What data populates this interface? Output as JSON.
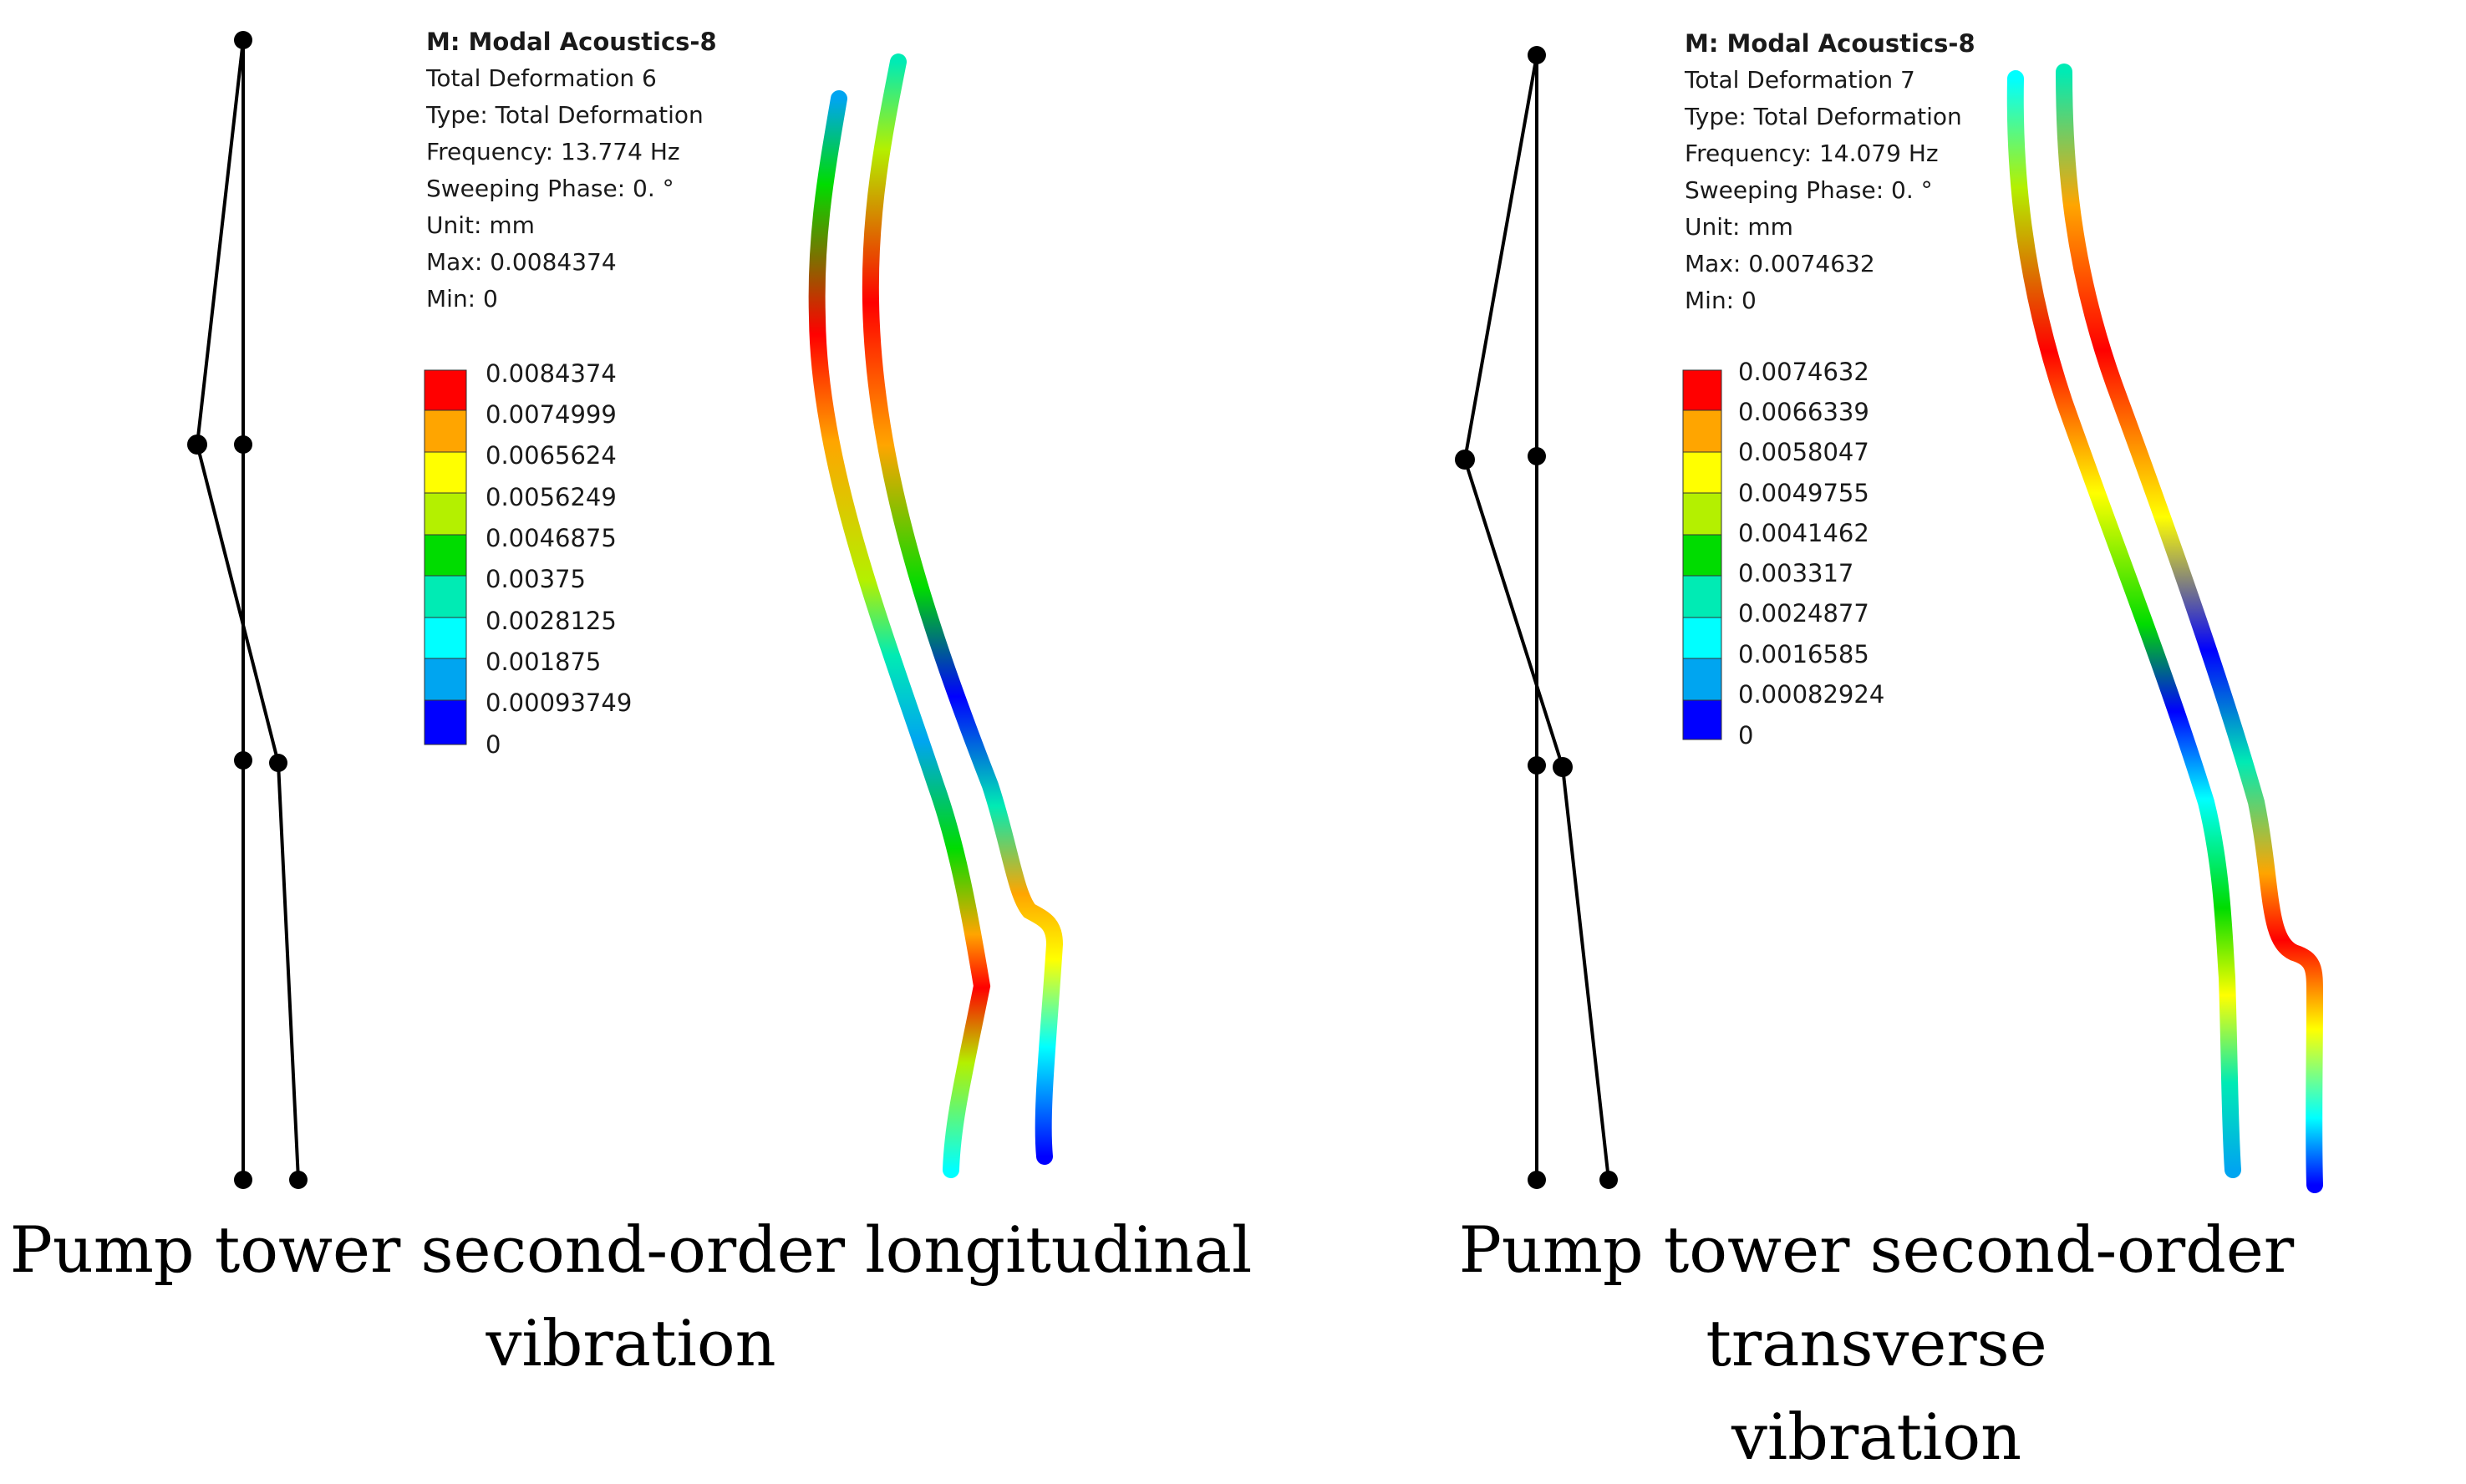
{
  "panels": [
    {
      "id": "longitudinal",
      "info": {
        "title": "M: Modal Acoustics-8",
        "result": "Total Deformation 6",
        "type": "Type: Total Deformation",
        "frequency": "Frequency: 13.774 Hz",
        "phase": "Sweeping Phase: 0. °",
        "unit": "Unit: mm",
        "max": "Max: 0.0084374",
        "min": "Min: 0"
      },
      "legend": [
        "0.0084374",
        "0.0074999",
        "0.0065624",
        "0.0056249",
        "0.0046875",
        "0.00375",
        "0.0028125",
        "0.001875",
        "0.00093749",
        "0"
      ],
      "caption": {
        "line1": "Pump tower second-order longitudinal",
        "line2": "vibration"
      }
    },
    {
      "id": "transverse",
      "info": {
        "title": "M: Modal Acoustics-8",
        "result": "Total Deformation 7",
        "type": "Type: Total Deformation",
        "frequency": "Frequency: 14.079 Hz",
        "phase": "Sweeping Phase: 0. °",
        "unit": "Unit: mm",
        "max": "Max: 0.0074632",
        "min": "Min: 0"
      },
      "legend": [
        "0.0074632",
        "0.0066339",
        "0.0058047",
        "0.0049755",
        "0.0041462",
        "0.003317",
        "0.0024877",
        "0.0016585",
        "0.00082924",
        "0"
      ],
      "caption": {
        "line1": "Pump tower second-order transverse",
        "line2": "vibration"
      }
    }
  ],
  "colors": {
    "scale": [
      "#ff0000",
      "#ffa500",
      "#ffff00",
      "#b4f000",
      "#00dc00",
      "#00ebb4",
      "#00ffff",
      "#00a5f0",
      "#0000ff"
    ],
    "line": "#000000"
  }
}
